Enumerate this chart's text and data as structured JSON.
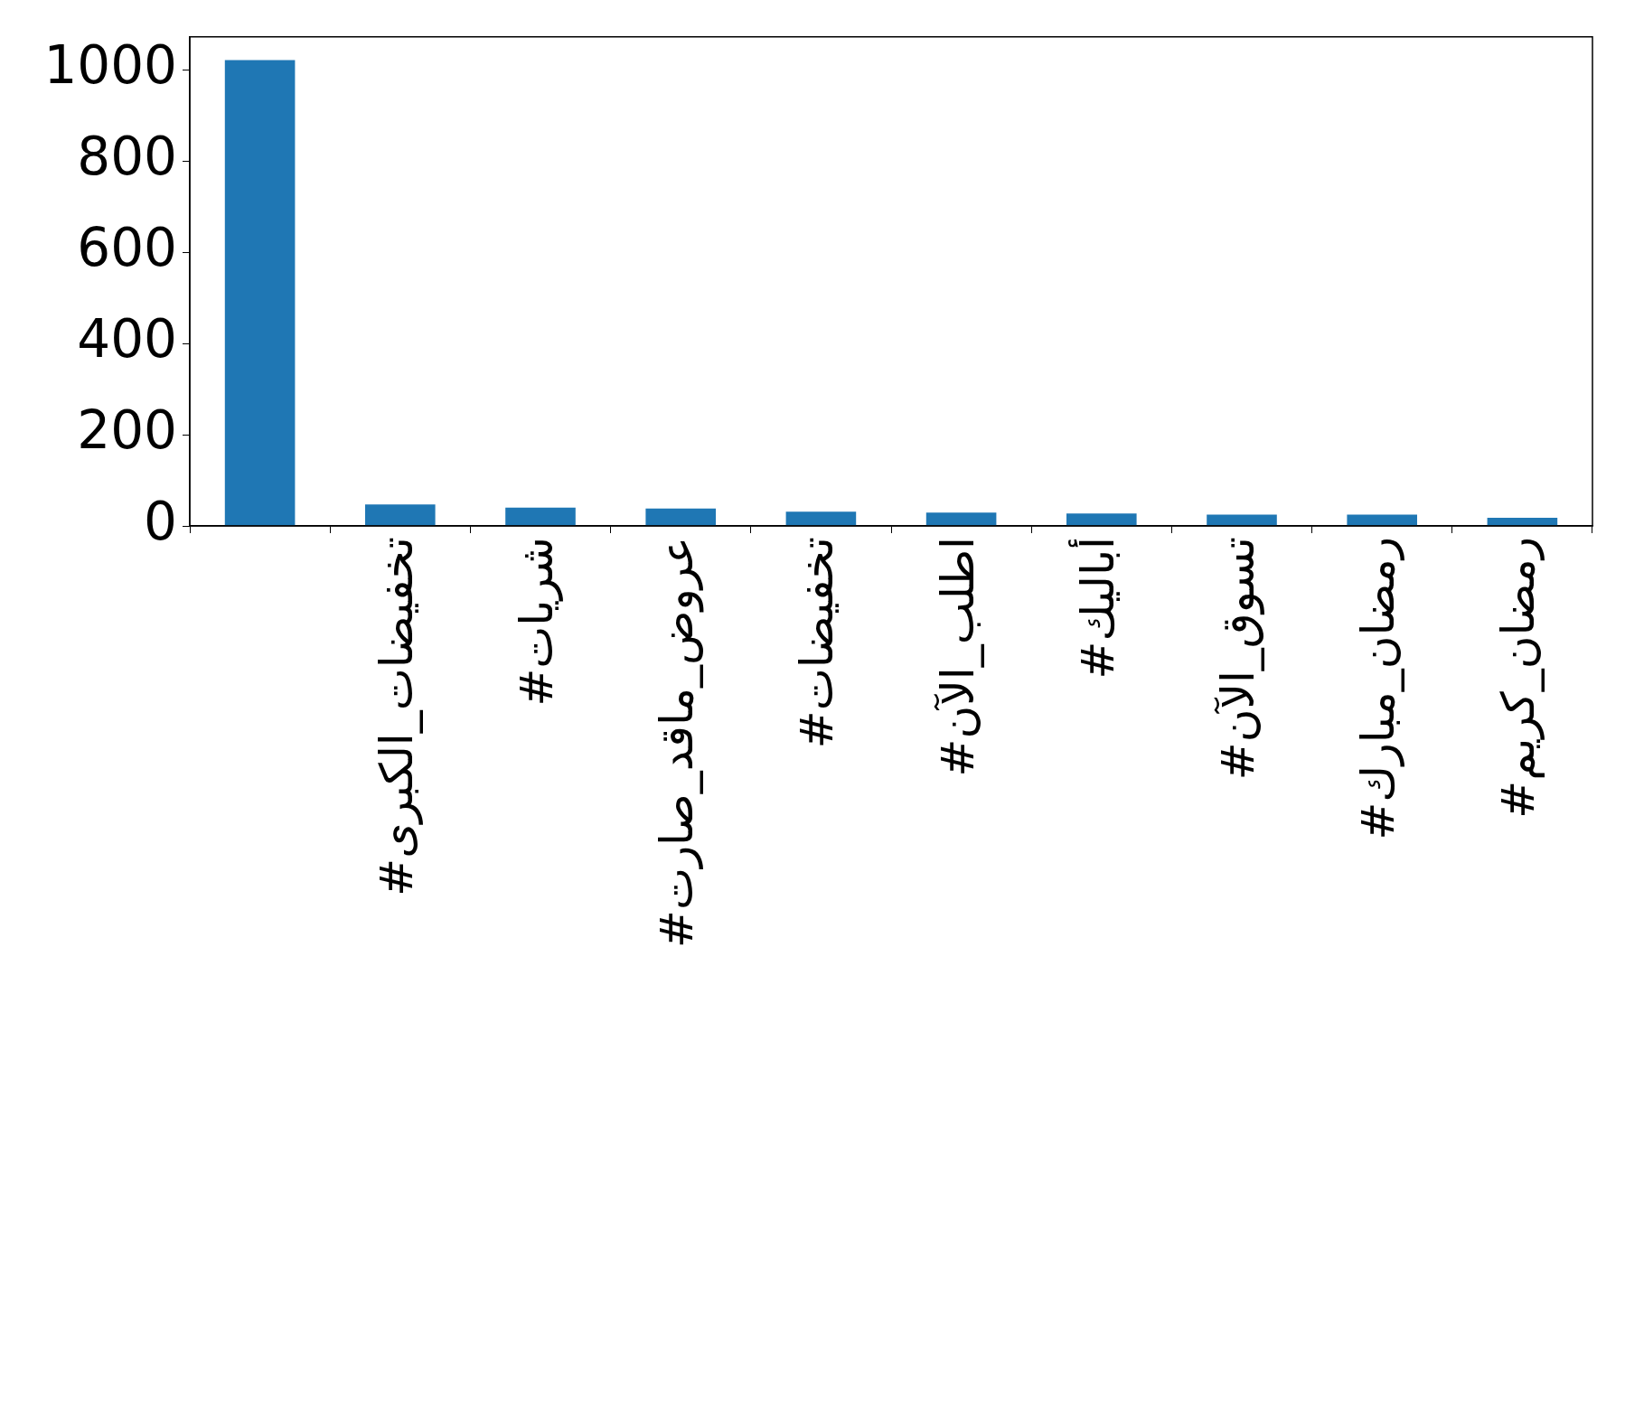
{
  "chart_data": {
    "type": "bar",
    "categories": [
      null,
      "#تخفيضات_الكبرى",
      "#شريات",
      "#عروض_ماقد_صارت",
      "#تخفيضات",
      "#اطلب_الآن",
      "#أباليك",
      "#تسوق_الآن",
      "#رمضان_مبارك",
      "#رمضان_كريم"
    ],
    "values": [
      1021,
      47,
      40,
      38,
      31,
      29,
      27,
      25,
      25,
      18
    ],
    "color": "#1f77b4",
    "ylim": [
      0,
      1072
    ],
    "yticks": [
      0,
      200,
      400,
      600,
      800,
      1000
    ],
    "grid": false,
    "legend": false
  }
}
